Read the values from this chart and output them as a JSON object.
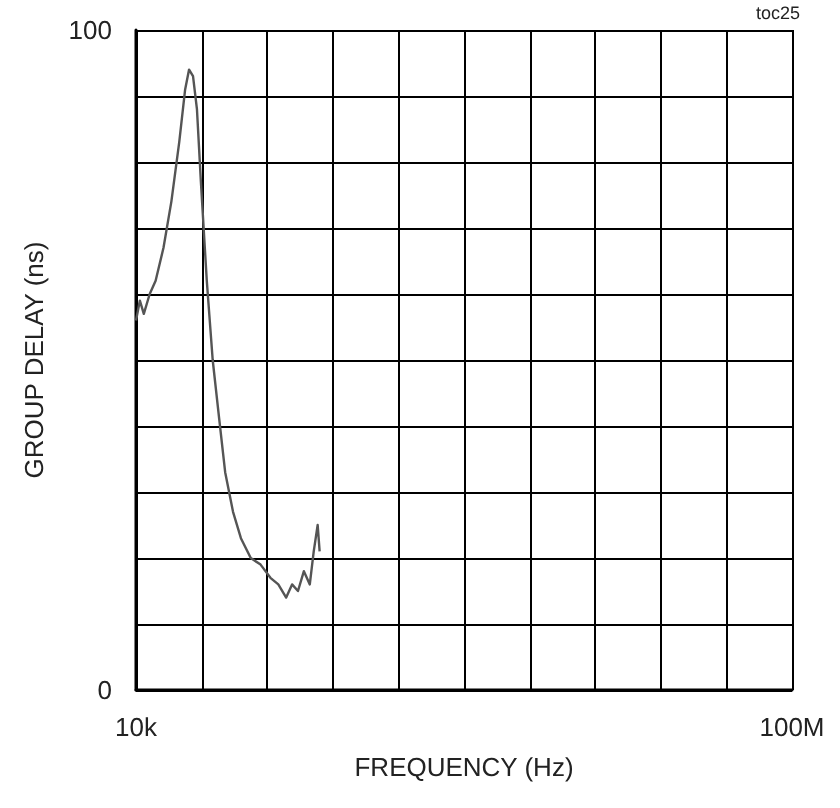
{
  "chart_data": {
    "type": "line",
    "xlabel": "FREQUENCY (Hz)",
    "ylabel": "GROUP DELAY (ns)",
    "annotations": [
      "toc25"
    ],
    "xlim": [
      10000,
      100000000
    ],
    "xticks": [
      {
        "value": 10000,
        "label": "10k"
      },
      {
        "value": 10009000,
        "label": null
      },
      {
        "value": 20008000,
        "label": null
      },
      {
        "value": 30007000,
        "label": null
      },
      {
        "value": 40006000,
        "label": null
      },
      {
        "value": 50005000,
        "label": null
      },
      {
        "value": 60004000,
        "label": null
      },
      {
        "value": 70003000,
        "label": null
      },
      {
        "value": 80002000,
        "label": null
      },
      {
        "value": 90001000,
        "label": null
      },
      {
        "value": 100000000,
        "label": "100M"
      }
    ],
    "ylim": [
      0,
      100
    ],
    "yticks": [
      0,
      {
        "value": 10,
        "label": null
      },
      {
        "value": 20,
        "label": null
      },
      {
        "value": 30,
        "label": null
      },
      {
        "value": 40,
        "label": null
      },
      {
        "value": 50,
        "label": null
      },
      {
        "value": 60,
        "label": null
      },
      {
        "value": 70,
        "label": null
      },
      {
        "value": 80,
        "label": null
      },
      {
        "value": 90,
        "label": null
      },
      100
    ],
    "grid": true,
    "marker": "none",
    "line_style": "solid",
    "series": [
      {
        "color": "#555555",
        "x": [
          10000,
          600000,
          1200000,
          2100000,
          3000000,
          4200000,
          5400000,
          6600000,
          7500000,
          8100000,
          8700000,
          9300000,
          9900000,
          10800000,
          11700000,
          12700000,
          13600000,
          14800000,
          16000000,
          17500000,
          19000000,
          20500000,
          21700000,
          22900000,
          23800000,
          24700000,
          25600000,
          26500000,
          27100000,
          27700000,
          28000000
        ],
        "values": [
          56,
          59,
          57,
          60,
          62,
          67,
          74,
          83,
          91,
          94,
          93,
          88,
          77,
          62,
          50,
          41,
          33,
          27,
          23,
          20,
          19,
          17,
          16,
          14,
          16,
          15,
          18,
          16,
          21,
          25,
          21
        ]
      }
    ]
  }
}
